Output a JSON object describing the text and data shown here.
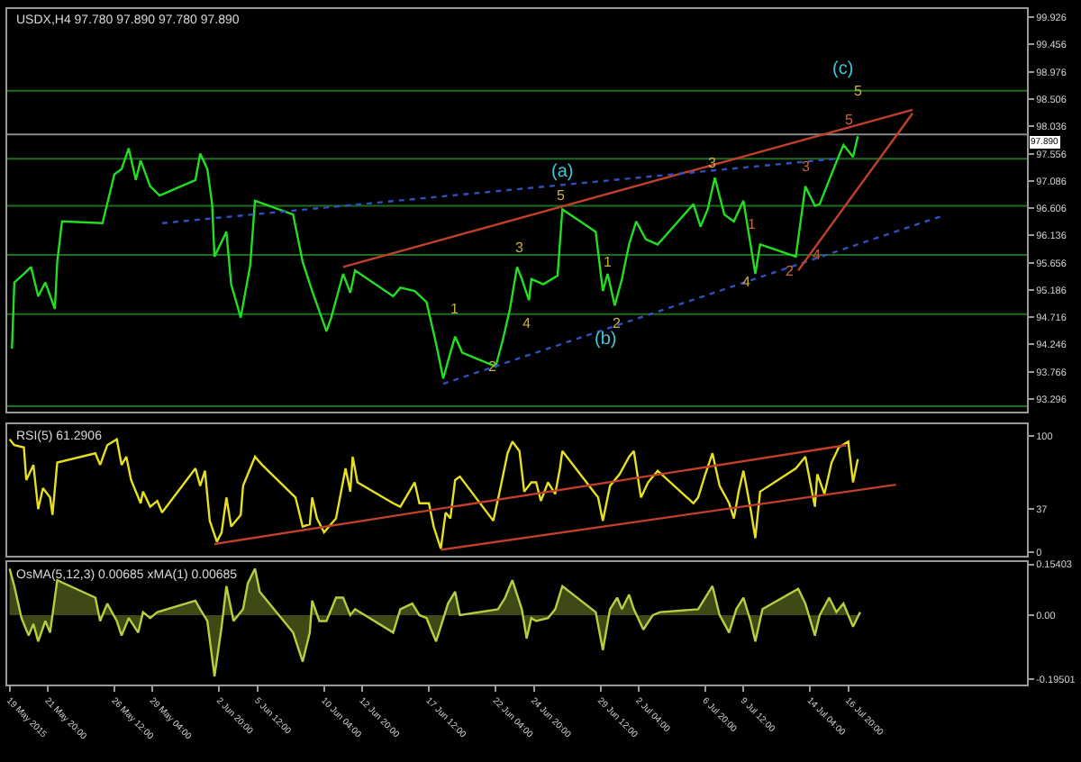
{
  "chart_data": [
    {
      "type": "line",
      "title": "USDX,H4 97.780 97.890 97.780 97.890",
      "tick_labels": "y",
      "line_style": "solid",
      "xlim": [
        "2015-05-19T00:00",
        "2015-07-29T08:00"
      ],
      "ylim": [
        93.07,
        100.07
      ],
      "yticks": [
        93.296,
        93.766,
        94.246,
        94.716,
        95.186,
        95.656,
        96.136,
        96.606,
        97.086,
        97.556,
        98.036,
        98.506,
        98.976,
        99.456,
        99.926
      ],
      "series": [
        {
          "color": "#22dd22",
          "x": [
            "2015-05-19T08:00",
            "2015-05-19T12:00",
            "2015-05-20T04:00",
            "2015-05-20T16:00",
            "2015-05-21T04:00",
            "2015-05-21T16:00",
            "2015-05-22T08:00",
            "2015-05-22T12:00",
            "2015-05-22T20:00",
            "2015-05-25T16:00",
            "2015-05-26T12:00",
            "2015-05-27T00:00",
            "2015-05-27T12:00",
            "2015-05-28T00:00",
            "2015-05-28T08:00",
            "2015-05-29T00:00",
            "2015-05-29T16:00",
            "2015-06-01T04:00",
            "2015-06-01T12:00",
            "2015-06-02T00:00",
            "2015-06-02T08:00",
            "2015-06-02T12:00",
            "2015-06-03T08:00",
            "2015-06-03T16:00",
            "2015-06-04T08:00",
            "2015-06-05T00:00",
            "2015-06-05T08:00",
            "2015-06-08T00:00",
            "2015-06-08T16:00",
            "2015-06-09T08:00",
            "2015-06-10T08:00",
            "2015-06-10T16:00",
            "2015-06-11T12:00",
            "2015-06-12T00:00",
            "2015-06-12T08:00",
            "2015-06-15T00:00",
            "2015-06-15T12:00",
            "2015-06-16T12:00",
            "2015-06-17T08:00",
            "2015-06-18T00:00",
            "2015-06-18T12:00",
            "2015-06-19T00:00",
            "2015-06-19T08:00",
            "2015-06-19T20:00",
            "2015-06-22T04:00",
            "2015-06-22T16:00",
            "2015-06-23T04:00",
            "2015-06-23T16:00",
            "2015-06-24T00:00",
            "2015-06-24T12:00",
            "2015-06-24T16:00",
            "2015-06-25T12:00",
            "2015-06-26T12:00",
            "2015-06-26T20:00",
            "2015-06-29T04:00",
            "2015-06-29T16:00",
            "2015-06-30T00:00",
            "2015-06-30T12:00",
            "2015-07-01T00:00",
            "2015-07-01T12:00",
            "2015-07-02T00:00",
            "2015-07-02T16:00",
            "2015-07-03T12:00",
            "2015-07-06T00:00",
            "2015-07-06T12:00",
            "2015-07-07T00:00",
            "2015-07-07T12:00",
            "2015-07-08T04:00",
            "2015-07-08T20:00",
            "2015-07-09T12:00",
            "2015-07-10T08:00",
            "2015-07-10T16:00",
            "2015-07-13T04:00",
            "2015-07-13T12:00",
            "2015-07-13T20:00",
            "2015-07-14T12:00",
            "2015-07-14T20:00",
            "2015-07-15T12:00",
            "2015-07-16T00:00",
            "2015-07-16T12:00",
            "2015-07-17T04:00",
            "2015-07-17T12:00"
          ],
          "values": [
            94.17,
            95.32,
            95.47,
            95.59,
            95.08,
            95.32,
            94.86,
            95.68,
            96.38,
            96.35,
            97.2,
            97.29,
            97.65,
            97.1,
            97.44,
            96.99,
            96.83,
            97.1,
            97.56,
            97.29,
            96.68,
            95.77,
            96.2,
            95.29,
            94.71,
            95.62,
            96.74,
            96.5,
            95.68,
            95.17,
            94.47,
            94.71,
            95.47,
            95.14,
            95.53,
            95.08,
            95.23,
            95.17,
            94.98,
            94.26,
            93.65,
            94.1,
            94.38,
            94.1,
            93.86,
            94.32,
            94.86,
            95.59,
            95.38,
            95.01,
            95.38,
            95.29,
            95.44,
            96.59,
            96.2,
            95.17,
            95.47,
            94.92,
            95.38,
            95.98,
            96.38,
            96.07,
            95.98,
            96.68,
            96.29,
            96.59,
            97.14,
            96.5,
            96.38,
            96.74,
            95.47,
            95.98,
            95.77,
            96.38,
            96.99,
            96.65,
            96.68,
            97.1,
            97.41,
            97.71,
            97.5,
            97.86
          ]
        },
        {
          "color": "#c0402a",
          "x": [
            "2015-06-11T12:00",
            "2015-07-21T08:00"
          ],
          "values": [
            95.59,
            98.32
          ]
        },
        {
          "color": "#3050c0",
          "line_style": "dotted",
          "x": [
            "2015-05-29T20:00",
            "2015-07-16T00:00"
          ],
          "values": [
            96.35,
            97.47
          ]
        },
        {
          "color": "#3050c0",
          "line_style": "dotted",
          "x": [
            "2015-06-18T12:00",
            "2015-07-23T08:00"
          ],
          "values": [
            93.56,
            96.47
          ]
        },
        {
          "color": "#c0402a",
          "x": [
            "2015-07-13T08:00",
            "2015-07-21T08:00"
          ],
          "values": [
            95.53,
            98.26
          ]
        }
      ],
      "ref_lines": [
        {
          "axis": "y",
          "value": 98.65,
          "color": "#1f6e1f"
        },
        {
          "axis": "y",
          "value": 97.89,
          "label": "97.890",
          "color": "#8a8a8a"
        },
        {
          "axis": "y",
          "value": 97.47,
          "color": "#1f6e1f"
        },
        {
          "axis": "y",
          "value": 96.65,
          "color": "#1f6e1f"
        },
        {
          "axis": "y",
          "value": 95.8,
          "color": "#1f6e1f"
        },
        {
          "axis": "y",
          "value": 94.77,
          "color": "#1f6e1f"
        },
        {
          "axis": "y",
          "value": 93.17,
          "color": "#1f6e1f"
        }
      ],
      "annotations": [
        "(a)",
        "5",
        "(b)",
        "(c)",
        {
          "text": "5",
          "x": "2015-07-17T12:00",
          "y": 98.65
        },
        "5",
        {
          "text": "1",
          "x": "2015-06-19T08:00",
          "y": 94.86
        },
        "2",
        {
          "text": "3",
          "x": "2015-06-23T20:00",
          "y": 95.92
        },
        {
          "text": "4",
          "x": "2015-06-24T08:00",
          "y": 94.62
        },
        {
          "text": "1",
          "x": "2015-06-30T00:00",
          "y": 95.68
        },
        {
          "text": "2",
          "x": "2015-06-30T16:00",
          "y": 94.62
        },
        {
          "text": "3",
          "x": "2015-07-07T08:00",
          "y": 97.41
        },
        "4",
        "1",
        "2",
        {
          "text": "3",
          "x": "2015-07-13T20:00",
          "y": 97.32
        },
        {
          "text": "4",
          "x": "2015-07-14T16:00",
          "y": 95.8
        }
      ]
    },
    {
      "type": "line",
      "title": "RSI(5) 61.2906",
      "tick_labels": "y",
      "xlim": [
        "2015-05-19T00:00",
        "2015-07-29T08:00"
      ],
      "ylim": [
        -3,
        110
      ],
      "yticks": [
        0,
        37,
        100
      ],
      "series": [
        {
          "color": "#e6e01e",
          "x": [
            "2015-05-19T04:00",
            "2015-05-19T12:00",
            "2015-05-20T04:00",
            "2015-05-20T08:00",
            "2015-05-20T20:00",
            "2015-05-21T04:00",
            "2015-05-21T12:00",
            "2015-05-22T00:00",
            "2015-05-22T04:00",
            "2015-05-22T12:00",
            "2015-05-25T04:00",
            "2015-05-25T12:00",
            "2015-05-26T00:00",
            "2015-05-26T16:00",
            "2015-05-27T00:00",
            "2015-05-27T08:00",
            "2015-05-27T16:00",
            "2015-05-28T08:00",
            "2015-05-28T12:00",
            "2015-05-29T00:00",
            "2015-05-29T12:00",
            "2015-05-29T20:00",
            "2015-06-01T04:00",
            "2015-06-01T12:00",
            "2015-06-01T20:00",
            "2015-06-02T04:00",
            "2015-06-02T16:00",
            "2015-06-03T00:00",
            "2015-06-03T08:00",
            "2015-06-03T16:00",
            "2015-06-04T08:00",
            "2015-06-04T12:00",
            "2015-06-05T08:00",
            "2015-06-05T20:00",
            "2015-06-08T04:00",
            "2015-06-08T16:00",
            "2015-06-09T04:00",
            "2015-06-09T08:00",
            "2015-06-09T16:00",
            "2015-06-10T04:00",
            "2015-06-11T00:00",
            "2015-06-11T16:00",
            "2015-06-12T00:00",
            "2015-06-12T04:00",
            "2015-06-12T12:00",
            "2015-06-15T00:00",
            "2015-06-15T12:00",
            "2015-06-16T12:00",
            "2015-06-16T20:00",
            "2015-06-17T12:00",
            "2015-06-17T20:00",
            "2015-06-18T08:00",
            "2015-06-18T16:00",
            "2015-06-19T00:00",
            "2015-06-19T08:00",
            "2015-06-19T16:00",
            "2015-06-22T00:00",
            "2015-06-22T12:00",
            "2015-06-23T00:00",
            "2015-06-23T08:00",
            "2015-06-23T20:00",
            "2015-06-24T04:00",
            "2015-06-24T16:00",
            "2015-06-25T00:00",
            "2015-06-25T08:00",
            "2015-06-25T20:00",
            "2015-06-26T08:00",
            "2015-06-26T16:00",
            "2015-06-26T20:00",
            "2015-06-29T08:00",
            "2015-06-29T16:00",
            "2015-06-30T04:00",
            "2015-06-30T20:00",
            "2015-07-01T12:00",
            "2015-07-01T20:00",
            "2015-07-02T08:00",
            "2015-07-02T20:00",
            "2015-07-03T12:00",
            "2015-07-06T00:00",
            "2015-07-06T08:00",
            "2015-07-06T20:00",
            "2015-07-07T08:00",
            "2015-07-07T20:00",
            "2015-07-08T12:00",
            "2015-07-08T20:00",
            "2015-07-09T04:00",
            "2015-07-09T12:00",
            "2015-07-10T00:00",
            "2015-07-10T08:00",
            "2015-07-10T16:00",
            "2015-07-13T04:00",
            "2015-07-13T20:00",
            "2015-07-14T12:00",
            "2015-07-14T16:00",
            "2015-07-15T04:00",
            "2015-07-15T16:00",
            "2015-07-16T04:00",
            "2015-07-16T20:00",
            "2015-07-17T04:00",
            "2015-07-17T12:00"
          ],
          "values": [
            97,
            92,
            90,
            62,
            75,
            37,
            55,
            47,
            32,
            77,
            85,
            75,
            92,
            97,
            75,
            82,
            62,
            42,
            52,
            39,
            44,
            34,
            72,
            57,
            70,
            27,
            9,
            17,
            47,
            22,
            32,
            57,
            82,
            75,
            47,
            22,
            24,
            47,
            29,
            17,
            29,
            72,
            52,
            82,
            60,
            42,
            39,
            60,
            42,
            42,
            22,
            3,
            34,
            29,
            62,
            65,
            27,
            55,
            85,
            95,
            87,
            52,
            60,
            60,
            44,
            60,
            50,
            72,
            87,
            47,
            27,
            57,
            67,
            82,
            87,
            47,
            60,
            70,
            42,
            47,
            67,
            85,
            57,
            42,
            29,
            52,
            70,
            37,
            12,
            52,
            72,
            82,
            39,
            67,
            50,
            77,
            90,
            95,
            60,
            80
          ]
        },
        {
          "color": "#c0402a",
          "x": [
            "2015-06-02T12:00",
            "2015-07-16T16:00"
          ],
          "values": [
            7,
            92
          ]
        },
        {
          "color": "#c0402a",
          "x": [
            "2015-06-18T08:00",
            "2015-07-20T04:00"
          ],
          "values": [
            2,
            58
          ]
        }
      ]
    },
    {
      "type": "area",
      "title": "OsMA(5,12,3) 0.00685 xMA(1) 0.00685",
      "xlim": [
        "2015-05-19T00:00",
        "2015-07-29T08:00"
      ],
      "ylim": [
        -0.21,
        0.16
      ],
      "yticks": [
        -0.19501,
        {
          "value": 0,
          "label": "0.00"
        },
        0.15403
      ],
      "xticks": [
        {
          "value": "2015-05-19T04:00",
          "label": "19 May 2015"
        },
        {
          "value": "2015-05-21T20:00",
          "label": "21 May 20:00"
        },
        {
          "value": "2015-05-26T12:00",
          "label": "26 May 12:00"
        },
        {
          "value": "2015-05-29T04:00",
          "label": "29 May 04:00"
        },
        {
          "value": "2015-06-02T20:00",
          "label": "2 Jun 20:00"
        },
        {
          "value": "2015-06-05T12:00",
          "label": "5 Jun 12:00"
        },
        {
          "value": "2015-06-10T04:00",
          "label": "10 Jun 04:00"
        },
        {
          "value": "2015-06-12T20:00",
          "label": "12 Jun 20:00"
        },
        {
          "value": "2015-06-17T12:00",
          "label": "17 Jun 12:00"
        },
        {
          "value": "2015-06-22T04:00",
          "label": "22 Jun 04:00"
        },
        {
          "value": "2015-06-24T20:00",
          "label": "24 Jun 20:00"
        },
        {
          "value": "2015-06-29T12:00",
          "label": "29 Jun 12:00"
        },
        {
          "value": "2015-07-02T04:00",
          "label": "2 Jul 04:00"
        },
        {
          "value": "2015-07-06T20:00",
          "label": "6 Jul 20:00"
        },
        {
          "value": "2015-07-09T12:00",
          "label": "9 Jul 12:00"
        },
        {
          "value": "2015-07-14T04:00",
          "label": "14 Jul 04:00"
        },
        {
          "value": "2015-07-16T20:00",
          "label": "16 Jul 20:00"
        }
      ],
      "series": [
        {
          "color": "#b4d040",
          "x": [
            "2015-05-19T04:00",
            "2015-05-19T12:00",
            "2015-05-20T00:00",
            "2015-05-20T12:00",
            "2015-05-20T20:00",
            "2015-05-21T04:00",
            "2015-05-21T16:00",
            "2015-05-22T00:00",
            "2015-05-22T12:00",
            "2015-05-25T04:00",
            "2015-05-25T12:00",
            "2015-05-26T00:00",
            "2015-05-26T16:00",
            "2015-05-27T00:00",
            "2015-05-27T12:00",
            "2015-05-28T04:00",
            "2015-05-28T12:00",
            "2015-05-29T00:00",
            "2015-05-29T12:00",
            "2015-06-01T04:00",
            "2015-06-01T12:00",
            "2015-06-02T00:00",
            "2015-06-02T12:00",
            "2015-06-03T00:00",
            "2015-06-03T08:00",
            "2015-06-03T20:00",
            "2015-06-04T12:00",
            "2015-06-04T20:00",
            "2015-06-05T08:00",
            "2015-06-05T16:00",
            "2015-06-08T00:00",
            "2015-06-08T16:00",
            "2015-06-09T04:00",
            "2015-06-09T08:00",
            "2015-06-09T20:00",
            "2015-06-10T08:00",
            "2015-06-11T00:00",
            "2015-06-11T12:00",
            "2015-06-12T00:00",
            "2015-06-12T08:00",
            "2015-06-15T00:00",
            "2015-06-15T12:00",
            "2015-06-16T08:00",
            "2015-06-16T20:00",
            "2015-06-17T08:00",
            "2015-06-18T00:00",
            "2015-06-18T08:00",
            "2015-06-18T20:00",
            "2015-06-19T08:00",
            "2015-06-19T16:00",
            "2015-06-22T08:00",
            "2015-06-22T20:00",
            "2015-06-23T08:00",
            "2015-06-24T00:00",
            "2015-06-24T08:00",
            "2015-06-24T16:00",
            "2015-06-25T00:00",
            "2015-06-25T20:00",
            "2015-06-26T08:00",
            "2015-06-26T20:00",
            "2015-06-29T04:00",
            "2015-06-29T16:00",
            "2015-06-30T04:00",
            "2015-06-30T16:00",
            "2015-07-01T00:00",
            "2015-07-01T12:00",
            "2015-07-01T20:00",
            "2015-07-02T12:00",
            "2015-07-03T04:00",
            "2015-07-03T16:00",
            "2015-07-06T08:00",
            "2015-07-06T20:00",
            "2015-07-07T08:00",
            "2015-07-07T20:00",
            "2015-07-08T12:00",
            "2015-07-09T00:00",
            "2015-07-09T12:00",
            "2015-07-10T00:00",
            "2015-07-10T08:00",
            "2015-07-10T20:00",
            "2015-07-13T08:00",
            "2015-07-13T20:00",
            "2015-07-14T12:00",
            "2015-07-14T20:00",
            "2015-07-15T12:00",
            "2015-07-16T00:00",
            "2015-07-16T12:00",
            "2015-07-17T04:00",
            "2015-07-17T16:00"
          ],
          "values": [
            0.141,
            0.088,
            -0.009,
            -0.062,
            -0.027,
            -0.08,
            -0.018,
            -0.053,
            0.106,
            0.053,
            -0.018,
            0.035,
            -0.018,
            -0.062,
            -0.009,
            -0.053,
            0.009,
            -0.009,
            0.009,
            0.044,
            0.018,
            -0.018,
            -0.186,
            -0.035,
            0.088,
            -0.018,
            0.018,
            0.097,
            0.141,
            0.071,
            -0.053,
            -0.141,
            -0.053,
            0.044,
            -0.018,
            -0.018,
            0.053,
            0.053,
            0.0,
            0.018,
            -0.053,
            0.018,
            0.035,
            0.0,
            -0.009,
            -0.08,
            -0.035,
            0.035,
            0.071,
            0.0,
            0.018,
            0.053,
            0.106,
            0.018,
            -0.071,
            -0.009,
            -0.018,
            -0.009,
            0.018,
            0.088,
            0.009,
            -0.106,
            0.018,
            0.053,
            0.018,
            0.062,
            0.018,
            -0.044,
            0.0,
            0.009,
            0.018,
            0.053,
            0.088,
            0.0,
            -0.053,
            0.018,
            0.053,
            -0.018,
            -0.08,
            0.018,
            0.08,
            0.035,
            -0.062,
            0.0,
            0.053,
            0.009,
            0.035,
            -0.035,
            0.009
          ]
        }
      ]
    }
  ]
}
